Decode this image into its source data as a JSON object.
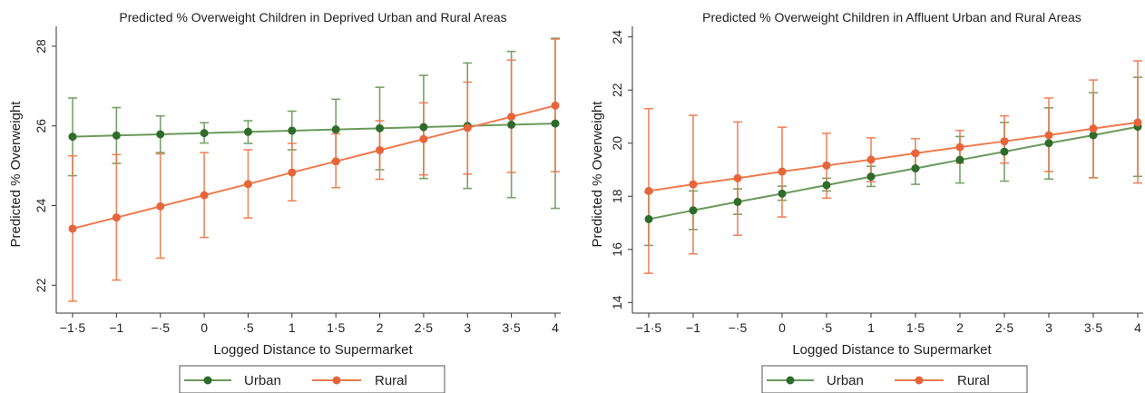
{
  "chart_data": [
    {
      "type": "line",
      "title": "Predicted % Overweight Children in Deprived Urban and Rural Areas",
      "xlabel": "Logged Distance to Supermarket",
      "ylabel": "Predicted % Overweight",
      "categories": [
        "−1·5",
        "−1",
        "−·5",
        "0",
        "·5",
        "1",
        "1·5",
        "2",
        "2·5",
        "3",
        "3·5",
        "4"
      ],
      "x": [
        -1.5,
        -1,
        -0.5,
        0,
        0.5,
        1,
        1.5,
        2,
        2.5,
        3,
        3.5,
        4
      ],
      "y_ticks": [
        22,
        24,
        26,
        28
      ],
      "ylim": [
        21.3,
        28.5
      ],
      "series": [
        {
          "name": "Urban",
          "color": "#2f6b2a",
          "line_color": "#6a9a5a",
          "values": [
            25.73,
            25.76,
            25.79,
            25.82,
            25.85,
            25.88,
            25.91,
            25.94,
            25.97,
            26.0,
            26.03,
            26.06
          ],
          "lower": [
            24.75,
            25.06,
            25.33,
            25.57,
            25.56,
            25.4,
            25.12,
            24.9,
            24.68,
            24.43,
            24.2,
            23.93
          ],
          "upper": [
            26.7,
            26.46,
            26.25,
            26.08,
            26.13,
            26.37,
            26.67,
            26.97,
            27.27,
            27.58,
            27.87,
            28.2
          ]
        },
        {
          "name": "Rural",
          "color": "#e8643a",
          "line_color": "#ee7a4d",
          "values": [
            23.42,
            23.7,
            23.98,
            24.26,
            24.54,
            24.83,
            25.11,
            25.39,
            25.67,
            25.95,
            26.23,
            26.51
          ],
          "lower": [
            21.6,
            22.13,
            22.68,
            23.2,
            23.69,
            24.12,
            24.45,
            24.66,
            24.77,
            24.79,
            24.83,
            24.85
          ],
          "upper": [
            25.25,
            25.28,
            25.3,
            25.33,
            25.4,
            25.56,
            25.8,
            26.13,
            26.58,
            27.1,
            27.65,
            28.18
          ]
        }
      ],
      "legend": {
        "position": "bottom",
        "labels": [
          "Urban",
          "Rural"
        ]
      }
    },
    {
      "type": "line",
      "title": "Predicted % Overweight Children in Affluent Urban and Rural Areas",
      "xlabel": "Logged Distance to Supermarket",
      "ylabel": "Predicted % Overweight",
      "categories": [
        "−1·5",
        "−1",
        "−·5",
        "0",
        "·5",
        "1",
        "1·5",
        "2",
        "2·5",
        "3",
        "3·5",
        "4"
      ],
      "x": [
        -1.5,
        -1,
        -0.5,
        0,
        0.5,
        1,
        1.5,
        2,
        2.5,
        3,
        3.5,
        4
      ],
      "y_ticks": [
        14,
        16,
        18,
        20,
        22,
        24
      ],
      "ylim": [
        13.6,
        24.4
      ],
      "series": [
        {
          "name": "Urban",
          "color": "#2f6b2a",
          "line_color": "#6a9a5a",
          "values": [
            17.14,
            17.47,
            17.79,
            18.1,
            18.42,
            18.74,
            19.05,
            19.37,
            19.68,
            20.0,
            20.3,
            20.62
          ],
          "lower": [
            16.15,
            16.75,
            17.32,
            17.85,
            18.2,
            18.37,
            18.45,
            18.5,
            18.57,
            18.65,
            18.7,
            18.75
          ],
          "upper": [
            18.15,
            18.2,
            18.28,
            18.38,
            18.68,
            19.13,
            19.65,
            20.25,
            20.78,
            21.33,
            21.9,
            22.48
          ]
        },
        {
          "name": "Rural",
          "color": "#e8643a",
          "line_color": "#ee7a4d",
          "values": [
            18.2,
            18.45,
            18.68,
            18.93,
            19.16,
            19.38,
            19.62,
            19.85,
            20.07,
            20.3,
            20.55,
            20.78
          ],
          "lower": [
            15.1,
            15.83,
            16.53,
            17.22,
            17.93,
            18.55,
            19.05,
            19.25,
            19.25,
            18.93,
            18.7,
            18.5
          ],
          "upper": [
            21.3,
            21.05,
            20.8,
            20.6,
            20.37,
            20.2,
            20.17,
            20.48,
            21.03,
            21.7,
            22.38,
            23.1
          ]
        }
      ],
      "legend": {
        "position": "bottom",
        "labels": [
          "Urban",
          "Rural"
        ]
      }
    }
  ]
}
